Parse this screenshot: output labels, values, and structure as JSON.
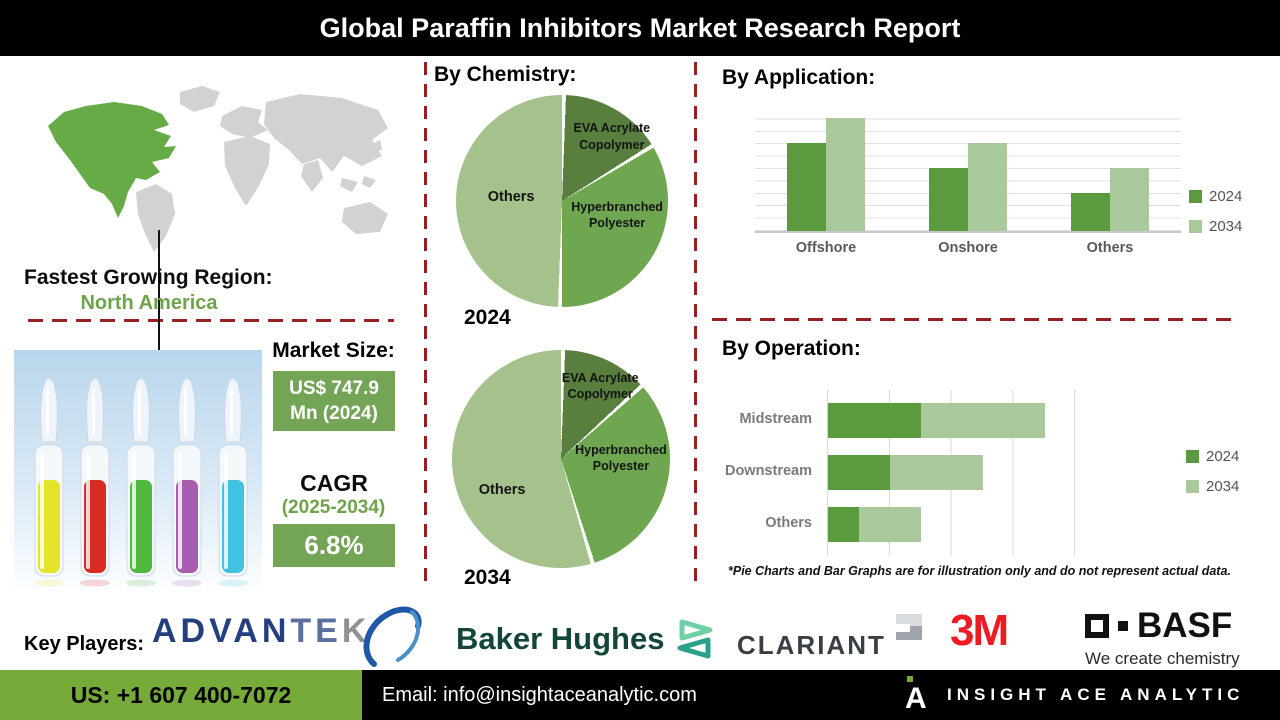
{
  "title": "Global Paraffin Inhibitors Market Research Report",
  "region": {
    "heading": "Fastest Growing Region:",
    "value": "North America"
  },
  "map": {
    "highlight_region": "North America",
    "highlight_color": "#67ab46",
    "land_color": "#d2d2d2"
  },
  "market": {
    "size_heading": "Market Size:",
    "size_line1": "US$ 747.9",
    "size_line2": "Mn (2024)",
    "cagr_label": "CAGR",
    "cagr_period": "(2025-2034)",
    "cagr_value": "6.8%",
    "box_color": "#74a455",
    "accent_green": "#6fa34a"
  },
  "chemistry": {
    "heading": "By Chemistry:",
    "year_2024": "2024",
    "year_2034": "2034"
  },
  "application": {
    "heading": "By  Application:"
  },
  "operation": {
    "heading": "By Operation:"
  },
  "disclaimer": "*Pie Charts and Bar Graphs are for illustration only and do not represent actual data.",
  "chart_data": [
    {
      "type": "pie",
      "title": "By Chemistry: 2024",
      "labels": [
        "EVA Acrylate Copolymer",
        "Hyperbranched Polyester",
        "Others"
      ],
      "values": [
        16,
        34,
        50
      ],
      "colors": [
        "#587f3d",
        "#6fa750",
        "#a5c28c"
      ]
    },
    {
      "type": "pie",
      "title": "By Chemistry: 2034",
      "labels": [
        "EVA Acrylate Copolymer",
        "Hyperbranched Polyester",
        "Others"
      ],
      "values": [
        13,
        32,
        55
      ],
      "colors": [
        "#587f3d",
        "#6fa750",
        "#a5c28c"
      ]
    },
    {
      "type": "bar",
      "title": "By Application:",
      "categories": [
        "Offshore",
        "Onshore",
        "Others"
      ],
      "series": [
        {
          "name": "2024",
          "values": [
            7,
            5,
            3
          ],
          "color": "#5b9a3e"
        },
        {
          "name": "2034",
          "values": [
            9,
            7,
            5
          ],
          "color": "#a9c89b"
        }
      ],
      "ylim": [
        0,
        10
      ],
      "grid": true,
      "legend_position": "right"
    },
    {
      "type": "bar-horizontal-stacked",
      "title": "By Operation:",
      "categories": [
        "Midstream",
        "Downstream",
        "Others"
      ],
      "series": [
        {
          "name": "2024",
          "values": [
            1.5,
            1.0,
            0.5
          ],
          "color": "#5b9a3e"
        },
        {
          "name": "2034",
          "values": [
            2.0,
            1.5,
            1.0
          ],
          "color": "#a9c89b"
        }
      ],
      "xlim": [
        0,
        4
      ],
      "grid": true,
      "legend_position": "right"
    }
  ],
  "key_players": {
    "label": "Key Players:",
    "players": [
      {
        "name": "ADVANTEK",
        "color": "#243f7e"
      },
      {
        "name": "Baker Hughes",
        "color": "#14453a"
      },
      {
        "name": "CLARIANT",
        "color": "#3a3f46"
      },
      {
        "name": "3M",
        "color": "#ee1b24"
      },
      {
        "name": "BASF",
        "color": "#111111",
        "tagline": "We create chemistry"
      }
    ]
  },
  "footer": {
    "phone": "US: +1 607 400-7072",
    "email": "Email: info@insightaceanalytic.com",
    "brand": "INSIGHT ACE ANALYTIC",
    "phone_bg": "#76ab3a"
  },
  "hero_image": {
    "liquid_colors": [
      "#e4e42c",
      "#d92c22",
      "#4fb83d",
      "#a85cae",
      "#41c2e0"
    ]
  }
}
